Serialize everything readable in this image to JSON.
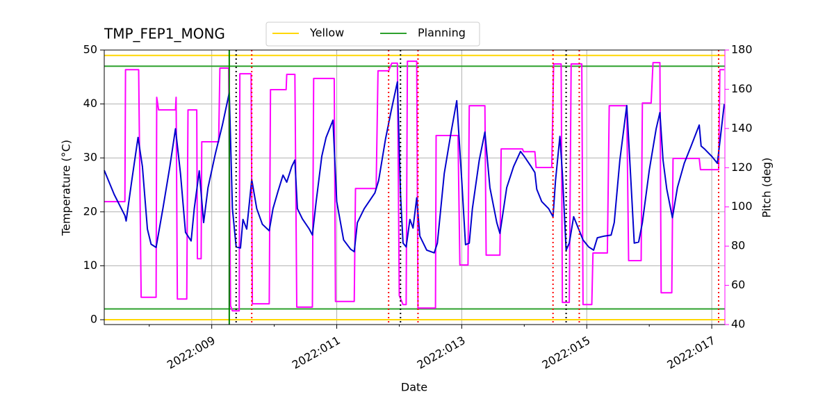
{
  "chart_data": {
    "type": "line",
    "title": "TMP_FEP1_MONG",
    "xlabel": "Date",
    "ylabel": "Temperature (°C)",
    "y2label": "Pitch (deg)",
    "y2color": "#ff00ff",
    "xlim": [
      7.28,
      17.21
    ],
    "xticks": [
      {
        "value": 9,
        "label": "2022:009"
      },
      {
        "value": 11,
        "label": "2022:011"
      },
      {
        "value": 13,
        "label": "2022:013"
      },
      {
        "value": 15,
        "label": "2022:015"
      },
      {
        "value": 17,
        "label": "2022:017"
      }
    ],
    "xminor": [
      8,
      10,
      12,
      14,
      16
    ],
    "ylim": [
      -0.9,
      50
    ],
    "yticks": [
      0,
      10,
      20,
      30,
      40,
      50
    ],
    "y2lim": [
      40,
      180
    ],
    "y2ticks": [
      40,
      60,
      80,
      100,
      120,
      140,
      160,
      180
    ],
    "grid": true,
    "legend": "top",
    "limits": [
      {
        "name": "Yellow",
        "color": "#ffd700",
        "values": [
          49,
          0
        ]
      },
      {
        "name": "Planning",
        "color": "#2ca02c",
        "values": [
          47,
          2
        ]
      }
    ],
    "vlines": [
      {
        "color": "#008000",
        "style": "solid",
        "x": [
          9.28
        ]
      },
      {
        "color": "#000000",
        "style": "dotted",
        "x": [
          9.39,
          12.02,
          14.67
        ]
      },
      {
        "color": "#ff0000",
        "style": "dotted",
        "x": [
          9.64,
          11.83,
          12.3,
          14.46,
          14.88,
          17.11
        ]
      }
    ],
    "series": [
      {
        "color": "#0000cd",
        "axis": "y",
        "x": [
          7.28,
          7.44,
          7.61,
          7.63,
          7.72,
          7.82,
          7.89,
          7.97,
          8.03,
          8.11,
          8.22,
          8.33,
          8.42,
          8.5,
          8.58,
          8.67,
          8.72,
          8.8,
          8.87,
          8.94,
          9.06,
          9.17,
          9.28,
          9.33,
          9.39,
          9.46,
          9.5,
          9.56,
          9.64,
          9.72,
          9.81,
          9.92,
          9.98,
          10.06,
          10.14,
          10.2,
          10.28,
          10.33,
          10.37,
          10.45,
          10.56,
          10.61,
          10.67,
          10.76,
          10.83,
          10.94,
          11.0,
          11.11,
          11.22,
          11.28,
          11.33,
          11.44,
          11.61,
          11.67,
          11.78,
          11.87,
          11.97,
          12.02,
          12.06,
          12.11,
          12.17,
          12.22,
          12.28,
          12.33,
          12.44,
          12.56,
          12.61,
          12.72,
          12.83,
          12.92,
          13.0,
          13.06,
          13.12,
          13.17,
          13.28,
          13.37,
          13.45,
          13.56,
          13.61,
          13.72,
          13.83,
          13.94,
          14.0,
          14.11,
          14.17,
          14.2,
          14.28,
          14.39,
          14.46,
          14.5,
          14.57,
          14.61,
          14.67,
          14.72,
          14.79,
          14.87,
          14.94,
          15.03,
          15.11,
          15.17,
          15.28,
          15.39,
          15.44,
          15.53,
          15.64,
          15.7,
          15.76,
          15.83,
          15.89,
          16.0,
          16.11,
          16.17,
          16.22,
          16.28,
          16.37,
          16.45,
          16.56,
          16.67,
          16.8,
          16.83,
          16.89,
          17.0,
          17.09,
          17.2
        ],
        "values": [
          27.7,
          23.2,
          19.3,
          18.3,
          25.8,
          33.8,
          28.4,
          16.8,
          14.0,
          13.4,
          20.7,
          28.4,
          35.4,
          27.1,
          16.2,
          14.6,
          20.6,
          27.6,
          18.0,
          24.5,
          30.9,
          36.1,
          42.1,
          20.6,
          13.5,
          13.3,
          18.6,
          16.8,
          26.0,
          20.6,
          17.7,
          16.5,
          20.6,
          23.8,
          26.8,
          25.5,
          28.4,
          29.6,
          20.6,
          18.7,
          16.8,
          15.7,
          21.9,
          30.3,
          33.8,
          37.0,
          21.9,
          14.8,
          13.1,
          12.6,
          18.0,
          20.6,
          23.5,
          25.8,
          33.5,
          38.7,
          44.1,
          23.2,
          14.2,
          13.5,
          18.6,
          17.0,
          22.6,
          15.5,
          12.9,
          12.4,
          14.2,
          27.1,
          34.8,
          40.6,
          25.8,
          13.9,
          14.2,
          20.6,
          29.6,
          34.8,
          24.5,
          18.0,
          16.0,
          24.5,
          28.4,
          31.2,
          30.3,
          28.4,
          27.3,
          24.2,
          21.9,
          20.6,
          19.1,
          25.8,
          34.0,
          27.1,
          12.9,
          14.2,
          19.1,
          16.8,
          14.8,
          13.5,
          12.9,
          15.2,
          15.5,
          15.7,
          18.0,
          29.6,
          39.7,
          27.1,
          14.2,
          14.4,
          18.0,
          27.7,
          35.4,
          38.4,
          29.6,
          24.2,
          18.9,
          24.5,
          29.0,
          32.2,
          36.1,
          32.2,
          31.6,
          30.3,
          29.0,
          40.0
        ]
      },
      {
        "color": "#ff00ff",
        "axis": "y2",
        "x": [
          7.28,
          7.61,
          7.62,
          7.83,
          7.87,
          8.11,
          8.12,
          8.15,
          8.42,
          8.43,
          8.45,
          8.6,
          8.62,
          8.76,
          8.77,
          8.83,
          8.84,
          9.11,
          9.13,
          9.27,
          9.3,
          9.33,
          9.44,
          9.45,
          9.63,
          9.65,
          9.92,
          9.94,
          10.19,
          10.2,
          10.33,
          10.36,
          10.61,
          10.63,
          10.96,
          10.98,
          11.28,
          11.3,
          11.63,
          11.66,
          11.83,
          11.88,
          11.97,
          12.0,
          12.06,
          12.11,
          12.13,
          12.28,
          12.3,
          12.58,
          12.59,
          12.94,
          12.97,
          13.1,
          13.12,
          13.37,
          13.39,
          13.61,
          13.63,
          13.97,
          13.99,
          14.17,
          14.19,
          14.44,
          14.47,
          14.59,
          14.61,
          14.72,
          14.75,
          14.92,
          14.94,
          15.08,
          15.1,
          15.33,
          15.36,
          15.64,
          15.67,
          15.87,
          15.89,
          16.03,
          16.06,
          16.17,
          16.19,
          16.36,
          16.38,
          16.8,
          16.82,
          17.11,
          17.13,
          17.2
        ],
        "values": [
          102.7,
          102.7,
          170,
          170,
          53.9,
          53.9,
          155.9,
          149.5,
          149.5,
          155.9,
          53,
          53,
          149.5,
          149.5,
          73.6,
          73.6,
          133.2,
          133.2,
          170.8,
          170.8,
          49.6,
          47,
          47,
          167.9,
          167.9,
          50.6,
          50.6,
          159.8,
          159.8,
          167.6,
          167.6,
          48.9,
          48.9,
          165.5,
          165.5,
          51.8,
          51.8,
          109.4,
          109.4,
          169.4,
          169.4,
          173.3,
          173.3,
          54.8,
          50.2,
          50.2,
          174.3,
          174.3,
          48.4,
          48.4,
          136.4,
          136.4,
          70.4,
          70.4,
          151.6,
          151.6,
          75.4,
          75.4,
          129.6,
          129.6,
          128.2,
          128.2,
          120.1,
          120.1,
          172.9,
          172.9,
          51.3,
          51.3,
          172.9,
          172.9,
          50.2,
          50.2,
          76.5,
          76.5,
          151.6,
          151.6,
          72.6,
          72.6,
          153,
          153,
          173.6,
          173.6,
          56.2,
          56.2,
          124.7,
          124.7,
          119,
          119,
          170,
          170
        ]
      }
    ]
  }
}
